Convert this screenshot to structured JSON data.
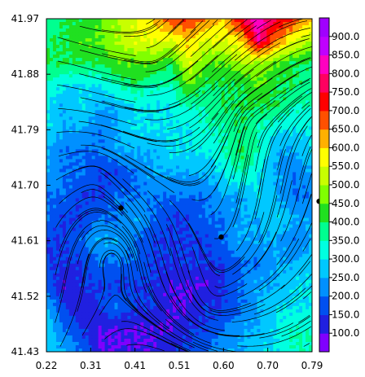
{
  "chart_data": {
    "type": "heatmap",
    "title": "",
    "xlabel": "",
    "ylabel": "",
    "xlim": [
      0.22,
      0.79
    ],
    "ylim": [
      41.43,
      41.97
    ],
    "x_ticks": [
      "0.22",
      "0.31",
      "0.41",
      "0.51",
      "0.60",
      "0.70",
      "0.79"
    ],
    "y_ticks": [
      "41.97",
      "41.88",
      "41.79",
      "41.70",
      "41.61",
      "41.52",
      "41.43"
    ],
    "colorbar": {
      "levels": [
        100.0,
        150.0,
        200.0,
        250.0,
        300.0,
        350.0,
        400.0,
        450.0,
        500.0,
        550.0,
        600.0,
        650.0,
        700.0,
        750.0,
        800.0,
        850.0,
        900.0
      ],
      "labels": [
        "100.0",
        "150.0",
        "200.0",
        "250.0",
        "300.0",
        "350.0",
        "400.0",
        "450.0",
        "500.0",
        "550.0",
        "600.0",
        "650.0",
        "700.0",
        "750.0",
        "800.0",
        "850.0",
        "900.0"
      ],
      "range": [
        50,
        950
      ],
      "colors": [
        "#8000ff",
        "#2020e0",
        "#0050f0",
        "#0090ff",
        "#00c8ff",
        "#00ffe0",
        "#00ff90",
        "#20e020",
        "#80ff00",
        "#c8ff00",
        "#ffff00",
        "#ffb000",
        "#ff5000",
        "#ff0000",
        "#ff0060",
        "#ff00c0",
        "#c000ff",
        "#a000ff"
      ]
    },
    "field_levels": [
      [
        350,
        400,
        400,
        450,
        500,
        550,
        600,
        700,
        700,
        650,
        600,
        750,
        850,
        750,
        700,
        600
      ],
      [
        400,
        400,
        450,
        450,
        500,
        550,
        550,
        550,
        600,
        550,
        550,
        600,
        800,
        650,
        550,
        500
      ],
      [
        400,
        400,
        400,
        400,
        450,
        450,
        450,
        400,
        550,
        450,
        450,
        500,
        500,
        450,
        400,
        400
      ],
      [
        350,
        300,
        300,
        300,
        350,
        400,
        350,
        350,
        450,
        400,
        400,
        400,
        450,
        400,
        400,
        350
      ],
      [
        300,
        250,
        300,
        250,
        250,
        300,
        300,
        300,
        350,
        350,
        400,
        400,
        400,
        400,
        350,
        350
      ],
      [
        300,
        250,
        250,
        200,
        250,
        300,
        300,
        300,
        300,
        350,
        350,
        400,
        350,
        300,
        300,
        300
      ],
      [
        250,
        200,
        200,
        200,
        250,
        250,
        250,
        300,
        300,
        300,
        350,
        400,
        350,
        250,
        250,
        300
      ],
      [
        250,
        200,
        200,
        150,
        150,
        200,
        250,
        250,
        250,
        250,
        300,
        350,
        300,
        250,
        200,
        250
      ],
      [
        200,
        200,
        150,
        150,
        200,
        200,
        200,
        200,
        200,
        200,
        250,
        250,
        300,
        250,
        200,
        200
      ],
      [
        200,
        150,
        150,
        200,
        200,
        250,
        200,
        150,
        150,
        200,
        200,
        250,
        250,
        300,
        250,
        250
      ],
      [
        150,
        150,
        200,
        250,
        250,
        200,
        150,
        150,
        150,
        150,
        200,
        250,
        250,
        250,
        200,
        250
      ],
      [
        150,
        150,
        150,
        200,
        200,
        200,
        150,
        150,
        150,
        150,
        150,
        200,
        200,
        250,
        250,
        300
      ],
      [
        200,
        100,
        150,
        150,
        150,
        150,
        150,
        100,
        100,
        100,
        150,
        200,
        250,
        250,
        300,
        300
      ],
      [
        250,
        150,
        100,
        150,
        200,
        150,
        150,
        100,
        100,
        150,
        150,
        200,
        250,
        300,
        300,
        300
      ],
      [
        300,
        200,
        150,
        100,
        100,
        100,
        100,
        100,
        150,
        150,
        200,
        250,
        250,
        300,
        350,
        350
      ],
      [
        300,
        250,
        200,
        100,
        100,
        100,
        100,
        150,
        150,
        200,
        250,
        250,
        300,
        300,
        350,
        350
      ]
    ],
    "points": [
      {
        "x": 0.38,
        "y": 41.663
      },
      {
        "x": 0.595,
        "y": 41.616
      },
      {
        "x": 0.805,
        "y": 41.674
      }
    ]
  }
}
